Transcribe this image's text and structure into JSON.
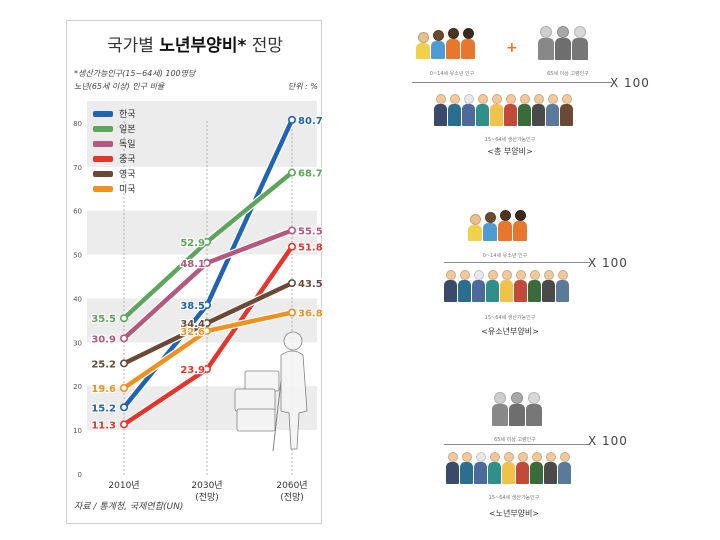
{
  "chart": {
    "title_plain": "국가별 ",
    "title_bold": "노년부양비*",
    "title_rest": " 전망",
    "note_line1": "*생산가능인구(15~64세) 100명당",
    "note_line2": "노년(65세 이상) 인구 비율",
    "unit": "단위 : %",
    "source": "자료 / 통계청, 국제연합(UN)"
  },
  "chart_data": {
    "type": "line",
    "x": [
      "2010년",
      "2030년\n(전망)",
      "2060년\n(전망)"
    ],
    "x_tick_line1": [
      "2010년",
      "2030년",
      "2060년"
    ],
    "x_tick_line2": [
      "",
      "(전망)",
      "(전망)"
    ],
    "ylim": [
      0,
      85
    ],
    "yticks": [
      0,
      10,
      20,
      30,
      40,
      50,
      60,
      70,
      80
    ],
    "grid": "alternating horizontal bands",
    "legend_position": "top-left",
    "series": [
      {
        "name": "한국",
        "color": "#1f63b3",
        "values": [
          15.2,
          38.5,
          80.7
        ],
        "labels": [
          "15.2",
          "38.5",
          "80.7"
        ]
      },
      {
        "name": "일본",
        "color": "#5ea55c",
        "values": [
          35.5,
          52.9,
          68.7
        ],
        "labels": [
          "35.5",
          "52.9",
          "68.7"
        ]
      },
      {
        "name": "독일",
        "color": "#b5577f",
        "values": [
          30.9,
          48.1,
          55.5
        ],
        "labels": [
          "30.9",
          "48.1",
          "55.5"
        ]
      },
      {
        "name": "중국",
        "color": "#e5352b",
        "values": [
          11.3,
          23.9,
          51.8
        ],
        "labels": [
          "11.3",
          "23.9",
          "51.8"
        ]
      },
      {
        "name": "영국",
        "color": "#6b4a35",
        "values": [
          25.2,
          34.4,
          43.5
        ],
        "labels": [
          "25.2",
          "34.4",
          "43.5"
        ]
      },
      {
        "name": "미국",
        "color": "#f0901e",
        "values": [
          19.6,
          32.6,
          36.8
        ],
        "labels": [
          "19.6",
          "32.6",
          "36.8"
        ]
      }
    ]
  },
  "right": {
    "block1": {
      "caption_children": "0~14세 유소년 인구",
      "caption_elderly": "65세 이상 고령인구",
      "caption_working": "15~64세 생산가능인구",
      "times": "X 100",
      "label": "<총 부양비>"
    },
    "block2": {
      "caption_children": "0~14세 유소년 인구",
      "caption_working": "15~64세 생산가능인구",
      "times": "X 100",
      "label": "<유소년부양비>"
    },
    "block3": {
      "caption_elderly": "65세 이상 고령인구",
      "caption_working": "15~64세 생산가능인구",
      "times": "X 100",
      "label": "<노년부양비>"
    }
  }
}
